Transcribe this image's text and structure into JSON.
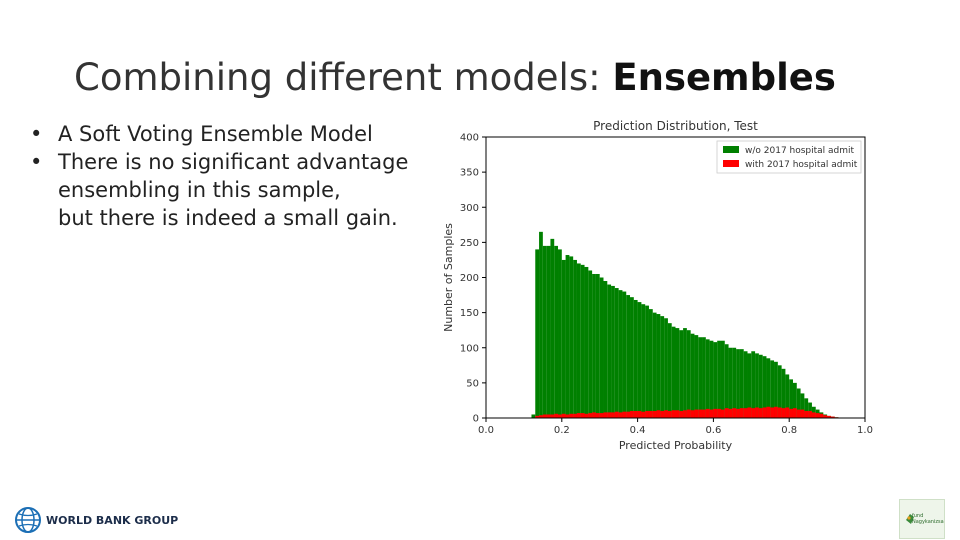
{
  "slide": {
    "title_regular": "Combining different models: ",
    "title_bold": "Ensembles",
    "bullets": [
      {
        "lines": [
          "A Soft Voting Ensemble Model"
        ]
      },
      {
        "lines": [
          "There is no significant advantage",
          "ensembling in this sample,",
          "but there is indeed a small gain."
        ]
      }
    ],
    "bullet_char": "•",
    "footer_logo_text": "WORLD BANK GROUP",
    "corner_logo_text_1": "fund",
    "corner_logo_text_2": "Nagykanizsa"
  },
  "colors": {
    "green": "#008000",
    "red": "#ff0000",
    "accent_logo": "#1c6fb5"
  },
  "chart_data": {
    "type": "histogram",
    "title": "Prediction Distribution, Test",
    "xlabel": "Predicted Probability",
    "ylabel": "Number of Samples",
    "xlim": [
      0.0,
      1.0
    ],
    "ylim": [
      0,
      400
    ],
    "xticks": [
      "0.0",
      "0.2",
      "0.4",
      "0.6",
      "0.8",
      "1.0"
    ],
    "yticks": [
      "0",
      "50",
      "100",
      "150",
      "200",
      "250",
      "300",
      "350",
      "400"
    ],
    "legend_position": "top-right",
    "series": [
      {
        "name": "w/o 2017 hospital admit",
        "color": "#008000",
        "x": [
          0.12,
          0.13,
          0.14,
          0.15,
          0.16,
          0.17,
          0.18,
          0.19,
          0.2,
          0.21,
          0.22,
          0.23,
          0.24,
          0.25,
          0.26,
          0.27,
          0.28,
          0.29,
          0.3,
          0.31,
          0.32,
          0.33,
          0.34,
          0.35,
          0.36,
          0.37,
          0.38,
          0.39,
          0.4,
          0.41,
          0.42,
          0.43,
          0.44,
          0.45,
          0.46,
          0.47,
          0.48,
          0.49,
          0.5,
          0.51,
          0.52,
          0.53,
          0.54,
          0.55,
          0.56,
          0.57,
          0.58,
          0.59,
          0.6,
          0.61,
          0.62,
          0.63,
          0.64,
          0.65,
          0.66,
          0.67,
          0.68,
          0.69,
          0.7,
          0.71,
          0.72,
          0.73,
          0.74,
          0.75,
          0.76,
          0.77,
          0.78,
          0.79,
          0.8,
          0.81,
          0.82,
          0.83,
          0.84,
          0.85,
          0.86,
          0.87,
          0.88,
          0.89,
          0.9,
          0.91,
          0.92,
          0.93
        ],
        "y": [
          5,
          240,
          265,
          245,
          245,
          255,
          245,
          240,
          225,
          232,
          230,
          225,
          220,
          218,
          215,
          210,
          205,
          205,
          200,
          195,
          190,
          188,
          185,
          182,
          180,
          175,
          172,
          168,
          165,
          162,
          160,
          155,
          150,
          148,
          145,
          142,
          135,
          130,
          128,
          125,
          128,
          125,
          120,
          118,
          115,
          115,
          112,
          110,
          108,
          110,
          110,
          105,
          100,
          100,
          98,
          98,
          95,
          92,
          95,
          92,
          90,
          88,
          85,
          82,
          80,
          75,
          70,
          62,
          55,
          50,
          42,
          35,
          28,
          22,
          16,
          12,
          8,
          5,
          3,
          2,
          1,
          0
        ]
      },
      {
        "name": "with 2017 hospital admit",
        "color": "#ff0000",
        "x": [
          0.12,
          0.13,
          0.14,
          0.15,
          0.16,
          0.17,
          0.18,
          0.19,
          0.2,
          0.21,
          0.22,
          0.23,
          0.24,
          0.25,
          0.26,
          0.27,
          0.28,
          0.29,
          0.3,
          0.31,
          0.32,
          0.33,
          0.34,
          0.35,
          0.36,
          0.37,
          0.38,
          0.39,
          0.4,
          0.41,
          0.42,
          0.43,
          0.44,
          0.45,
          0.46,
          0.47,
          0.48,
          0.49,
          0.5,
          0.51,
          0.52,
          0.53,
          0.54,
          0.55,
          0.56,
          0.57,
          0.58,
          0.59,
          0.6,
          0.61,
          0.62,
          0.63,
          0.64,
          0.65,
          0.66,
          0.67,
          0.68,
          0.69,
          0.7,
          0.71,
          0.72,
          0.73,
          0.74,
          0.75,
          0.76,
          0.77,
          0.78,
          0.79,
          0.8,
          0.81,
          0.82,
          0.83,
          0.84,
          0.85,
          0.86,
          0.87,
          0.88,
          0.89,
          0.9,
          0.91,
          0.92,
          0.93
        ],
        "y": [
          0,
          3,
          4,
          5,
          5,
          5,
          6,
          5,
          6,
          5,
          6,
          6,
          7,
          7,
          6,
          7,
          8,
          7,
          7,
          8,
          8,
          8,
          9,
          8,
          9,
          9,
          10,
          10,
          10,
          9,
          10,
          10,
          10,
          11,
          10,
          11,
          10,
          11,
          11,
          10,
          11,
          12,
          11,
          12,
          12,
          12,
          13,
          12,
          13,
          13,
          12,
          14,
          13,
          14,
          13,
          14,
          14,
          15,
          14,
          15,
          14,
          15,
          16,
          15,
          16,
          15,
          14,
          15,
          13,
          14,
          12,
          12,
          10,
          10,
          8,
          7,
          6,
          4,
          3,
          2,
          1,
          0
        ]
      }
    ]
  }
}
